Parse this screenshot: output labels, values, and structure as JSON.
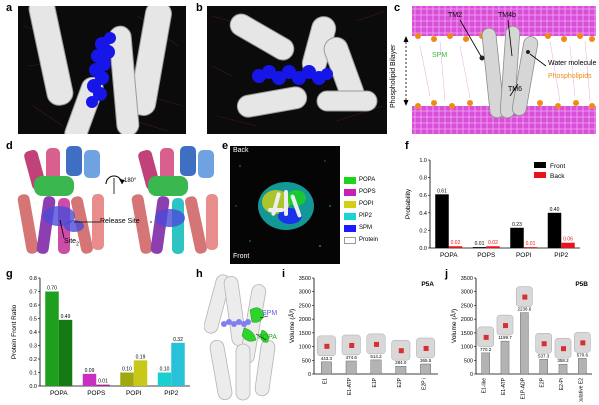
{
  "panels": {
    "a": {
      "label": "a"
    },
    "b": {
      "label": "b"
    },
    "c": {
      "label": "c",
      "y_label": "Phospholipid Bilayer",
      "labels": [
        "TM2",
        "TM4b",
        "SPM",
        "Water molecule",
        "Phospholipids",
        "TM6"
      ]
    },
    "d": {
      "label": "d",
      "rotation": "180°",
      "release_site": "Release Site",
      "site2": "Site",
      "site2_sub": "2"
    },
    "e": {
      "label": "e",
      "back": "Back",
      "front": "Front",
      "legend": [
        "POPA",
        "POPS",
        "POPI",
        "PIP2",
        "SPM",
        "Protein"
      ]
    },
    "f": {
      "label": "f"
    },
    "g": {
      "label": "g"
    },
    "h": {
      "label": "h",
      "spm": "SPM",
      "popa": "POPA"
    },
    "i": {
      "label": "i",
      "tag": "P5A"
    },
    "j": {
      "label": "j",
      "tag": "P5B"
    }
  },
  "colors": {
    "front": "#000000",
    "back": "#e8141b",
    "lipids": [
      "#1bd41b",
      "#c81fb8",
      "#d4cf12",
      "#1ad5d5",
      "#1a1aff",
      "#ffffff"
    ],
    "g_light": "#1e9f1e",
    "g_dark": "#168a16"
  },
  "chart_data": [
    {
      "panel": "f",
      "type": "bar",
      "categories": [
        "POPA",
        "POPS",
        "POPI",
        "PIP2"
      ],
      "series": [
        {
          "name": "Front",
          "values": [
            0.61,
            0.01,
            0.23,
            0.4
          ]
        },
        {
          "name": "Back",
          "values": [
            0.02,
            0.02,
            0.01,
            0.06
          ]
        }
      ],
      "value_labels": [
        [
          "0.61",
          "0.01",
          "0.23",
          "0.40"
        ],
        [
          "0.02",
          "0.02",
          "0.01",
          "0.06"
        ]
      ],
      "ylabel": "Probability",
      "ylim": [
        0,
        1.0
      ],
      "yticks": [
        "0.0",
        "0.2",
        "0.4",
        "0.6",
        "0.8",
        "1.0"
      ],
      "legend_position": "top-right"
    },
    {
      "panel": "g",
      "type": "bar",
      "categories": [
        "POPA",
        "POPS",
        "POPI",
        "PIP2"
      ],
      "series": [
        {
          "values": [
            0.7,
            0.09,
            0.1,
            0.1
          ]
        },
        {
          "values": [
            0.49,
            0.01,
            0.19,
            0.32
          ]
        }
      ],
      "value_labels": [
        [
          "0.70",
          "0.09",
          "0.10",
          "0.10"
        ],
        [
          "0.49",
          "0.01",
          "0.19",
          "0.32"
        ]
      ],
      "ylabel": "Protein Front Ratio",
      "ylim": [
        0,
        0.8
      ],
      "yticks": [
        "0.0",
        "0.1",
        "0.2",
        "0.3",
        "0.4",
        "0.5",
        "0.6",
        "0.7",
        "0.8"
      ]
    },
    {
      "panel": "i",
      "type": "bar",
      "categories": [
        "E1",
        "E1-ATP",
        "E1P",
        "E2P",
        "E2P i"
      ],
      "values": [
        443.3,
        474.6,
        514.2,
        284.0,
        365.5
      ],
      "value_labels": [
        "443.3",
        "474.6",
        "514.2",
        "284.0",
        "365.5"
      ],
      "ylabel": "Volume (Å³)",
      "ylim": [
        0,
        3500
      ],
      "yticks": [
        "0",
        "500",
        "1000",
        "1500",
        "2000",
        "2500",
        "3000",
        "3500"
      ]
    },
    {
      "panel": "j",
      "type": "bar",
      "categories": [
        "E1-like",
        "E1-ATP",
        "E1P-ADP",
        "E2P",
        "E2-Pi",
        "putative E2"
      ],
      "values": [
        770.2,
        1199.7,
        2238.6,
        537.3,
        358.2,
        570.6
      ],
      "value_labels": [
        "770.2",
        "1199.7",
        "2238.6",
        "537.3",
        "358.2",
        "570.6"
      ],
      "ylabel": "Volume (Å³)",
      "ylim": [
        0,
        3500
      ],
      "yticks": [
        "0",
        "500",
        "1000",
        "1500",
        "2000",
        "2500",
        "3000",
        "3500"
      ]
    }
  ]
}
